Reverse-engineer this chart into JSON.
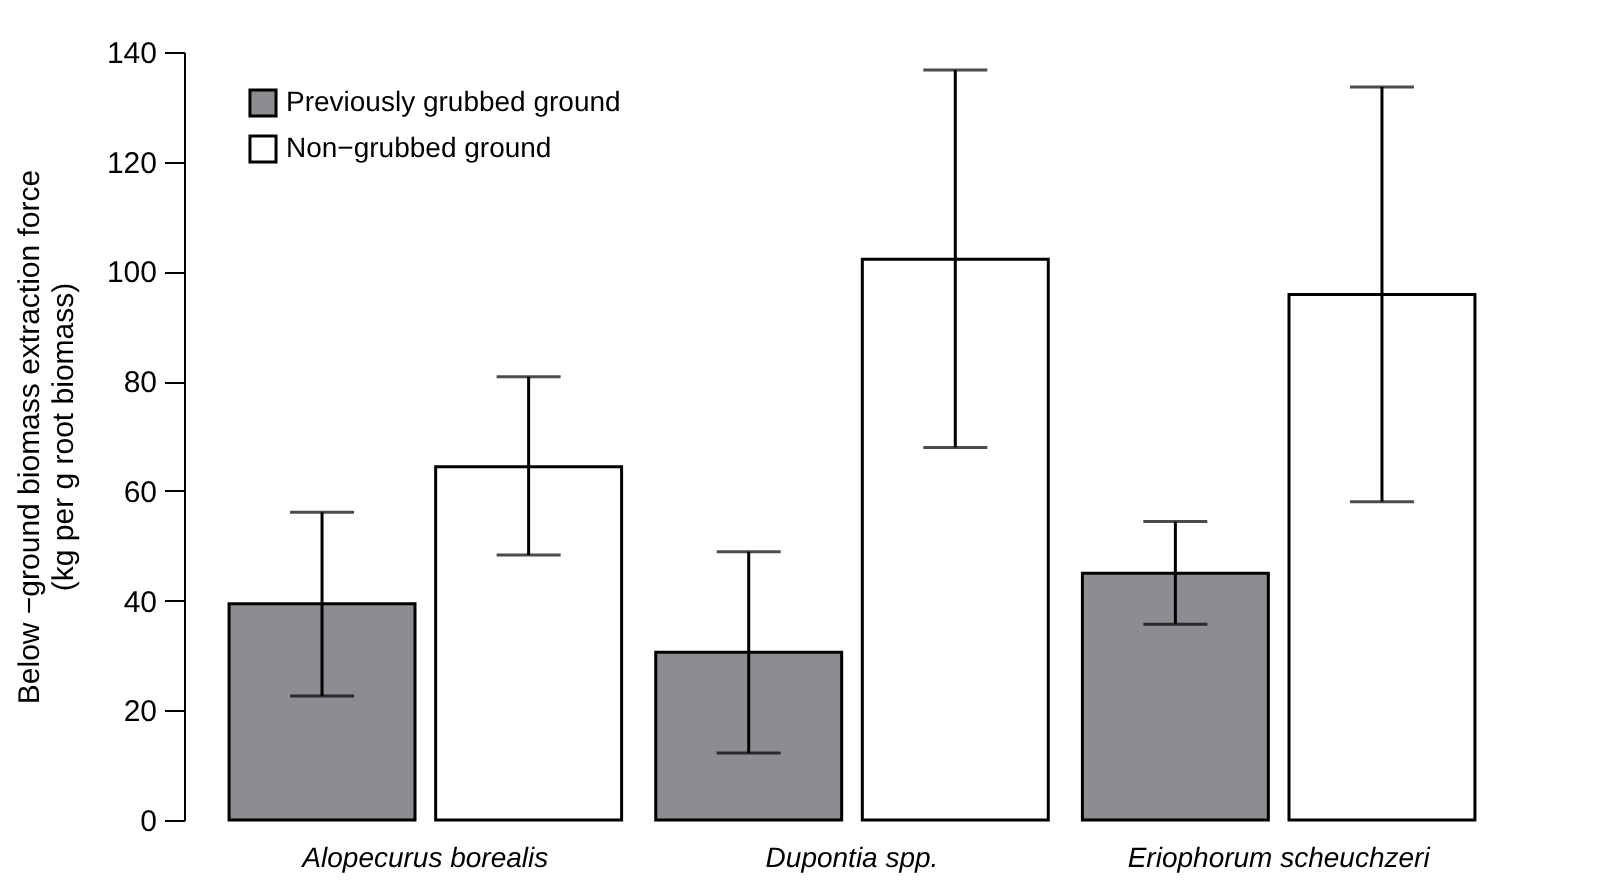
{
  "chart_data": {
    "type": "bar",
    "ylabel": "Below −ground biomass extraction force\n(kg per g root biomass)",
    "categories": [
      "Alopecurus borealis",
      "Dupontia spp.",
      "Eriophorum scheuchzeri"
    ],
    "series": [
      {
        "name": "Previously grubbed ground",
        "color": "#8c8d90",
        "values": [
          39.4,
          30.6,
          45
        ],
        "errors": [
          [
            22.6,
            56.1
          ],
          [
            12.2,
            48.9
          ],
          [
            35.7,
            54.4
          ]
        ]
      },
      {
        "name": "Non−grubbed ground",
        "color": "#ffffff",
        "values": [
          64.4,
          102.2,
          95.8
        ],
        "errors": [
          [
            48.3,
            80.8
          ],
          [
            67.9,
            136.7
          ],
          [
            58,
            133.6
          ]
        ]
      }
    ],
    "ylim": [
      0,
      140
    ],
    "yticks": [
      0,
      20,
      40,
      60,
      80,
      100,
      120,
      140
    ],
    "grid": false,
    "legend": "top left"
  }
}
